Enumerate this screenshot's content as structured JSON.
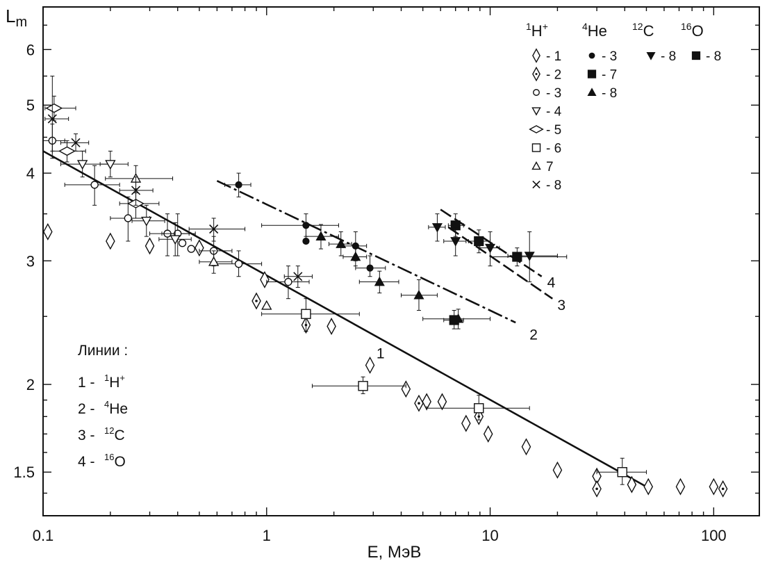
{
  "chart_data": {
    "type": "scatter",
    "x_scale": "log",
    "y_scale": "log",
    "xlim": [
      0.1,
      160
    ],
    "ylim": [
      1.3,
      6.9
    ],
    "xlabel": "E, МэВ",
    "ylabel_main": "L",
    "ylabel_sub": "m",
    "grid": false,
    "x_ticks": [
      {
        "value": 0.1,
        "label": "0.1"
      },
      {
        "value": 1,
        "label": "1"
      },
      {
        "value": 10,
        "label": "10"
      },
      {
        "value": 100,
        "label": "100"
      }
    ],
    "y_ticks": [
      {
        "value": 1.5,
        "label": "1.5"
      },
      {
        "value": 2,
        "label": "2"
      },
      {
        "value": 3,
        "label": "3"
      },
      {
        "value": 4,
        "label": "4"
      },
      {
        "value": 5,
        "label": "5"
      },
      {
        "value": 6,
        "label": "6"
      }
    ],
    "legend_groups": [
      {
        "sup": "1",
        "name": "H",
        "charge": "+"
      },
      {
        "sup": "4",
        "name": "He",
        "charge": ""
      },
      {
        "sup": "12",
        "name": "C",
        "charge": ""
      },
      {
        "sup": "16",
        "name": "O",
        "charge": ""
      }
    ],
    "legend_entries": [
      {
        "group": 0,
        "marker": "diamond-open",
        "label": "- 1"
      },
      {
        "group": 0,
        "marker": "diamond-dot",
        "label": "- 2"
      },
      {
        "group": 0,
        "marker": "circle-open",
        "label": "- 3"
      },
      {
        "group": 0,
        "marker": "triangle-down-open",
        "label": "- 4"
      },
      {
        "group": 0,
        "marker": "diamond-wide-open",
        "label": "- 5"
      },
      {
        "group": 0,
        "marker": "square-open",
        "label": "- 6"
      },
      {
        "group": 0,
        "marker": "triangle-up-open",
        "label": "7"
      },
      {
        "group": 0,
        "marker": "cross",
        "label": "- 8"
      },
      {
        "group": 1,
        "marker": "circle-filled",
        "label": "- 3"
      },
      {
        "group": 1,
        "marker": "square-filled",
        "label": "- 7"
      },
      {
        "group": 1,
        "marker": "triangle-up-filled",
        "label": "- 8"
      },
      {
        "group": 2,
        "marker": "triangle-down-filled",
        "label": "- 8"
      },
      {
        "group": 3,
        "marker": "square-filled",
        "label": "- 8"
      }
    ],
    "lines_legend": {
      "title": "Линии :",
      "items": [
        {
          "num": "1 -",
          "sup": "1",
          "name": "H",
          "charge": "+"
        },
        {
          "num": "2 -",
          "sup": "4",
          "name": "He",
          "charge": ""
        },
        {
          "num": "3 -",
          "sup": "12",
          "name": "C",
          "charge": ""
        },
        {
          "num": "4 -",
          "sup": "16",
          "name": "O",
          "charge": ""
        }
      ]
    },
    "fit_lines": [
      {
        "label": "1",
        "style": "solid",
        "x": [
          0.1,
          50
        ],
        "y": [
          4.3,
          1.43
        ],
        "label_at": [
          3.1,
          2.22
        ]
      },
      {
        "label": "2",
        "style": "dashed",
        "x": [
          0.6,
          13
        ],
        "y": [
          3.9,
          2.45
        ],
        "label_at": [
          15,
          2.36
        ]
      },
      {
        "label": "3",
        "style": "dashed",
        "x": [
          6.5,
          19
        ],
        "y": [
          3.35,
          2.65
        ],
        "label_at": [
          20,
          2.6
        ]
      },
      {
        "label": "4",
        "style": "dashed",
        "x": [
          6,
          17
        ],
        "y": [
          3.55,
          2.85
        ],
        "label_at": [
          18,
          2.8
        ]
      }
    ],
    "series": [
      {
        "marker": "diamond-open",
        "points": [
          {
            "x": 0.105,
            "y": 3.3
          },
          {
            "x": 0.2,
            "y": 3.2
          },
          {
            "x": 0.3,
            "y": 3.15
          },
          {
            "x": 0.5,
            "y": 3.13
          },
          {
            "x": 0.98,
            "y": 2.82
          },
          {
            "x": 1.95,
            "y": 2.42
          },
          {
            "x": 2.9,
            "y": 2.13
          },
          {
            "x": 4.2,
            "y": 1.97
          },
          {
            "x": 5.2,
            "y": 1.89
          },
          {
            "x": 6.1,
            "y": 1.89
          },
          {
            "x": 7.8,
            "y": 1.76
          },
          {
            "x": 9.8,
            "y": 1.7
          },
          {
            "x": 14.5,
            "y": 1.63
          },
          {
            "x": 20,
            "y": 1.51
          },
          {
            "x": 30,
            "y": 1.48
          },
          {
            "x": 43,
            "y": 1.44
          },
          {
            "x": 51,
            "y": 1.43
          },
          {
            "x": 71,
            "y": 1.43
          },
          {
            "x": 100,
            "y": 1.43
          }
        ]
      },
      {
        "marker": "diamond-dot",
        "points": [
          {
            "x": 0.9,
            "y": 2.63
          },
          {
            "x": 1.5,
            "y": 2.43
          },
          {
            "x": 4.8,
            "y": 1.88
          },
          {
            "x": 8.9,
            "y": 1.8
          },
          {
            "x": 30,
            "y": 1.42
          },
          {
            "x": 110,
            "y": 1.42
          }
        ]
      },
      {
        "marker": "circle-open",
        "points": [
          {
            "x": 0.11,
            "y": 4.45,
            "xerr": [
              0.1,
              0.125
            ],
            "yerr": [
              4.2,
              4.7
            ]
          },
          {
            "x": 0.17,
            "y": 3.85,
            "xerr": [
              0.125,
              0.22
            ],
            "yerr": [
              3.6,
              4.1
            ]
          },
          {
            "x": 0.24,
            "y": 3.45,
            "xerr": [
              0.2,
              0.3
            ],
            "yerr": [
              3.2,
              3.7
            ]
          },
          {
            "x": 0.36,
            "y": 3.28,
            "xerr": [
              0.3,
              0.45
            ],
            "yerr": [
              3.05,
              3.5
            ]
          },
          {
            "x": 0.4,
            "y": 3.28,
            "xerr": [
              0.34,
              0.48
            ],
            "yerr": [
              3.05,
              3.5
            ]
          },
          {
            "x": 0.42,
            "y": 3.18
          },
          {
            "x": 0.46,
            "y": 3.12
          },
          {
            "x": 0.58,
            "y": 3.1,
            "xerr": [
              0.5,
              0.7
            ],
            "yerr": [
              2.95,
              3.25
            ]
          },
          {
            "x": 0.75,
            "y": 2.97,
            "xerr": [
              0.6,
              0.95
            ],
            "yerr": [
              2.85,
              3.1
            ]
          },
          {
            "x": 1.25,
            "y": 2.8,
            "xerr": [
              1.0,
              1.55
            ],
            "yerr": [
              2.65,
              2.95
            ]
          }
        ]
      },
      {
        "marker": "triangle-down-open",
        "points": [
          {
            "x": 0.15,
            "y": 4.12,
            "xerr": [
              0.12,
              0.2
            ],
            "yerr": [
              3.95,
              4.3
            ]
          },
          {
            "x": 0.2,
            "y": 4.12,
            "xerr": [
              0.18,
              0.24
            ],
            "yerr": [
              3.95,
              4.3
            ]
          },
          {
            "x": 0.29,
            "y": 3.42,
            "xerr": [
              0.25,
              0.35
            ],
            "yerr": [
              3.25,
              3.6
            ]
          },
          {
            "x": 0.39,
            "y": 3.22,
            "xerr": [
              0.33,
              0.46
            ],
            "yerr": [
              3.05,
              3.4
            ]
          }
        ]
      },
      {
        "marker": "diamond-wide-open",
        "points": [
          {
            "x": 0.112,
            "y": 4.95,
            "xerr": [
              0.102,
              0.14
            ],
            "yerr": [
              4.75,
              5.15
            ]
          },
          {
            "x": 0.128,
            "y": 4.3,
            "xerr": [
              0.11,
              0.155
            ],
            "yerr": [
              4.15,
              4.45
            ]
          },
          {
            "x": 0.26,
            "y": 3.62,
            "xerr": [
              0.22,
              0.33
            ],
            "yerr": [
              3.45,
              3.8
            ]
          }
        ]
      },
      {
        "marker": "square-open",
        "points": [
          {
            "x": 1.5,
            "y": 2.52,
            "xerr": [
              0.95,
              2.6
            ],
            "yerr": [
              2.38,
              2.65
            ]
          },
          {
            "x": 2.7,
            "y": 1.99,
            "xerr": [
              1.6,
              4.2
            ],
            "yerr": [
              1.94,
              2.05
            ]
          },
          {
            "x": 8.9,
            "y": 1.85,
            "xerr": [
              5.2,
              15
            ],
            "yerr": [
              1.78,
              1.93
            ]
          },
          {
            "x": 39,
            "y": 1.5,
            "xerr": [
              30,
              50
            ],
            "yerr": [
              1.44,
              1.57
            ]
          }
        ]
      },
      {
        "marker": "triangle-up-open",
        "points": [
          {
            "x": 0.26,
            "y": 3.93,
            "xerr": [
              0.19,
              0.38
            ],
            "yerr": [
              3.75,
              4.1
            ]
          },
          {
            "x": 0.58,
            "y": 2.99,
            "xerr": [
              0.5,
              0.7
            ],
            "yerr": [
              2.88,
              3.1
            ]
          },
          {
            "x": 1.0,
            "y": 2.59
          }
        ]
      },
      {
        "marker": "cross",
        "points": [
          {
            "x": 0.11,
            "y": 4.78,
            "xerr": [
              0.102,
              0.13
            ],
            "yerr": [
              4.3,
              5.5
            ]
          },
          {
            "x": 0.14,
            "y": 4.42,
            "xerr": [
              0.12,
              0.16
            ],
            "yerr": [
              4.3,
              4.55
            ]
          },
          {
            "x": 0.26,
            "y": 3.78,
            "xerr": [
              0.22,
              0.31
            ],
            "yerr": [
              3.6,
              3.95
            ]
          },
          {
            "x": 0.58,
            "y": 3.33,
            "xerr": [
              0.45,
              0.8
            ],
            "yerr": [
              3.2,
              3.45
            ]
          },
          {
            "x": 1.38,
            "y": 2.85,
            "xerr": [
              1.2,
              1.6
            ],
            "yerr": [
              2.75,
              2.95
            ]
          }
        ]
      },
      {
        "marker": "circle-filled",
        "points": [
          {
            "x": 0.75,
            "y": 3.85,
            "xerr": [
              0.65,
              0.85
            ],
            "yerr": [
              3.7,
              4.0
            ]
          },
          {
            "x": 1.5,
            "y": 3.37,
            "xerr": [
              0.95,
              2.1
            ],
            "yerr": [
              3.25,
              3.5
            ]
          },
          {
            "x": 1.5,
            "y": 3.2
          },
          {
            "x": 2.5,
            "y": 3.15,
            "xerr": [
              2.2,
              2.8
            ],
            "yerr": [
              3.0,
              3.3
            ]
          },
          {
            "x": 2.9,
            "y": 2.93,
            "xerr": [
              2.5,
              3.4
            ],
            "yerr": [
              2.85,
              3.05
            ]
          }
        ]
      },
      {
        "marker": "triangle-up-filled",
        "points": [
          {
            "x": 1.75,
            "y": 3.25,
            "xerr": [
              1.5,
              2.1
            ],
            "yerr": [
              3.12,
              3.38
            ]
          },
          {
            "x": 2.15,
            "y": 3.17,
            "xerr": [
              1.9,
              2.4
            ],
            "yerr": [
              3.05,
              3.3
            ]
          },
          {
            "x": 2.5,
            "y": 3.04,
            "xerr": [
              2.2,
              2.8
            ],
            "yerr": [
              2.95,
              3.15
            ]
          },
          {
            "x": 3.2,
            "y": 2.8,
            "xerr": [
              2.6,
              3.9
            ],
            "yerr": [
              2.7,
              2.9
            ]
          },
          {
            "x": 4.8,
            "y": 2.68,
            "xerr": [
              4.0,
              5.8
            ],
            "yerr": [
              2.55,
              2.82
            ]
          },
          {
            "x": 7.2,
            "y": 2.48,
            "xerr": [
              5.0,
              10
            ],
            "yerr": [
              2.4,
              2.56
            ]
          }
        ]
      },
      {
        "marker": "square-filled",
        "points": [
          {
            "x": 7.0,
            "y": 3.37,
            "xerr": [
              6.5,
              7.6
            ],
            "yerr": [
              3.25,
              3.5
            ]
          },
          {
            "x": 8.9,
            "y": 3.2,
            "xerr": [
              8.0,
              10
            ],
            "yerr": [
              3.08,
              3.32
            ]
          },
          {
            "x": 6.9,
            "y": 2.47,
            "xerr": [
              6.2,
              7.6
            ],
            "yerr": [
              2.4,
              2.55
            ]
          }
        ]
      },
      {
        "marker": "triangle-down-filled",
        "points": [
          {
            "x": 5.8,
            "y": 3.35,
            "xerr": [
              5.3,
              6.3
            ],
            "yerr": [
              3.2,
              3.5
            ]
          },
          {
            "x": 7.0,
            "y": 3.2,
            "xerr": [
              6.2,
              7.8
            ],
            "yerr": [
              3.05,
              3.35
            ]
          },
          {
            "x": 10,
            "y": 3.13,
            "xerr": [
              9,
              11
            ],
            "yerr": [
              2.95,
              3.3
            ]
          },
          {
            "x": 15,
            "y": 3.05,
            "xerr": [
              12,
              20
            ],
            "yerr": [
              2.8,
              3.3
            ]
          }
        ]
      },
      {
        "marker": "square-filled",
        "points": [
          {
            "x": 13.2,
            "y": 3.04,
            "xerr": [
              10,
              22
            ],
            "yerr": [
              2.95,
              3.13
            ]
          }
        ]
      }
    ]
  }
}
